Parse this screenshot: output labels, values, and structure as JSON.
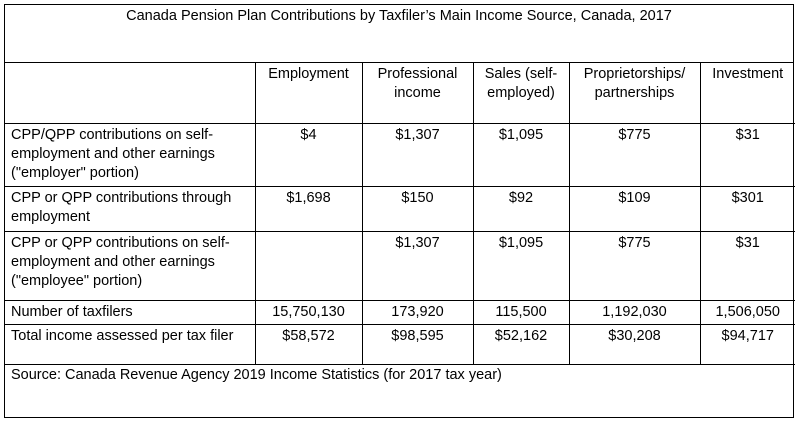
{
  "title": "Canada Pension Plan Contributions by Taxfiler’s Main Income Source, Canada, 2017",
  "columns": [
    "",
    "Employment",
    "Professional income",
    "Sales (self-employed)",
    "Proprietorships/ partnerships",
    "Investment"
  ],
  "rows": [
    {
      "label": "CPP/QPP contributions on self-employment and other earnings (\"employer\" portion)",
      "cells": [
        "$4",
        "$1,307",
        "$1,095",
        "$775",
        "$31"
      ]
    },
    {
      "label": "CPP or QPP contributions through employment",
      "cells": [
        "$1,698",
        "$150",
        "$92",
        "$109",
        "$301"
      ]
    },
    {
      "label": "CPP or QPP contributions on self-employment and other earnings (\"employee\" portion)",
      "cells": [
        "",
        "$1,307",
        "$1,095",
        "$775",
        "$31"
      ]
    },
    {
      "label": "Number of taxfilers",
      "cells": [
        "15,750,130",
        "173,920",
        "115,500",
        "1,192,030",
        "1,506,050"
      ]
    },
    {
      "label": "Total income assessed per tax filer",
      "cells": [
        "$58,572",
        "$98,595",
        "$52,162",
        "$30,208",
        "$94,717"
      ]
    }
  ],
  "source": "Source: Canada Revenue Agency 2019 Income Statistics (for 2017 tax year)"
}
